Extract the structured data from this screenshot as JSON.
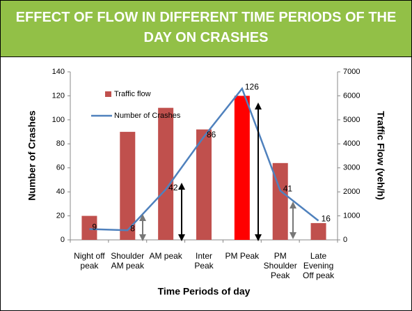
{
  "chart_data": {
    "type": "bar_line",
    "title": "EFFECT OF FLOW IN DIFFERENT TIME PERIODS OF THE DAY ON CRASHES",
    "categories": [
      "Night off peak",
      "Shoulder AM peak",
      "AM peak",
      "Inter Peak",
      "PM Peak",
      "PM Shoulder Peak",
      "Late Evening Off peak"
    ],
    "series": [
      {
        "name": "Traffic flow",
        "type": "bar",
        "axis": "y2",
        "color": "#c0504d",
        "colors": [
          "#c0504d",
          "#c0504d",
          "#c0504d",
          "#c0504d",
          "#ff0000",
          "#c0504d",
          "#c0504d"
        ],
        "values": [
          1000,
          4500,
          5500,
          4600,
          6000,
          3200,
          700
        ]
      },
      {
        "name": "Number of Crashes",
        "type": "line",
        "color": "#4f81bd",
        "values": [
          9,
          8,
          42,
          86,
          126,
          41,
          16
        ]
      }
    ],
    "ylim": [
      0,
      140
    ],
    "yticks": [
      0,
      20,
      40,
      60,
      80,
      100,
      120,
      140
    ],
    "y2lim": [
      0,
      7000
    ],
    "y2ticks": [
      0,
      1000,
      2000,
      3000,
      4000,
      5000,
      6000,
      7000
    ],
    "ylabel": "Number of Crashes",
    "y2label": "Traffic Flow (veh/h)",
    "xlabel": "Time Periods of day",
    "legend": "top-left"
  }
}
